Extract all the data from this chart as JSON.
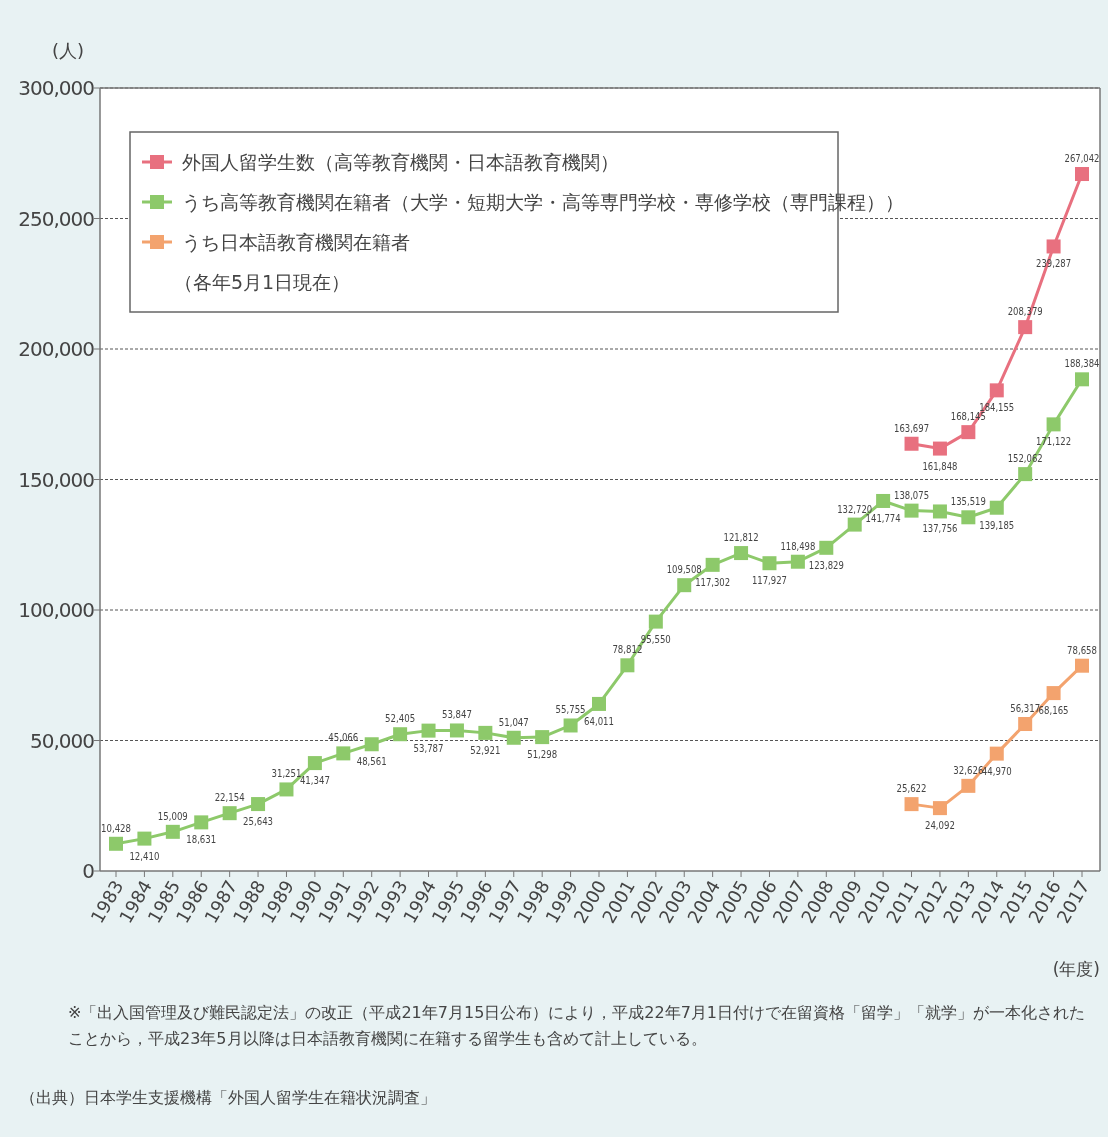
{
  "chart_data": {
    "type": "line",
    "ylabel": "(人)",
    "xlabel": "(年度)",
    "categories": [
      "1983",
      "1984",
      "1985",
      "1986",
      "1987",
      "1988",
      "1989",
      "1990",
      "1991",
      "1992",
      "1993",
      "1994",
      "1995",
      "1996",
      "1997",
      "1998",
      "1999",
      "2000",
      "2001",
      "2002",
      "2003",
      "2004",
      "2005",
      "2006",
      "2007",
      "2008",
      "2009",
      "2010",
      "2011",
      "2012",
      "2013",
      "2014",
      "2015",
      "2016",
      "2017"
    ],
    "series": [
      {
        "name": "外国人留学生数（高等教育機関・日本語教育機関）",
        "color": "#e8707f",
        "values": [
          null,
          null,
          null,
          null,
          null,
          null,
          null,
          null,
          null,
          null,
          null,
          null,
          null,
          null,
          null,
          null,
          null,
          null,
          null,
          null,
          null,
          null,
          null,
          null,
          null,
          null,
          null,
          null,
          163697,
          161848,
          168145,
          184155,
          208379,
          239287,
          267042
        ],
        "value_labels": [
          null,
          null,
          null,
          null,
          null,
          null,
          null,
          null,
          null,
          null,
          null,
          null,
          null,
          null,
          null,
          null,
          null,
          null,
          null,
          null,
          null,
          null,
          null,
          null,
          null,
          null,
          null,
          null,
          "163,697",
          "161,848",
          "168,145",
          "184,155",
          "208,379",
          "239,287",
          "267,042"
        ]
      },
      {
        "name": "うち高等教育機関在籍者（大学・短期大学・高等専門学校・専修学校（専門課程））",
        "color": "#8dc96a",
        "values": [
          10428,
          12410,
          15009,
          18631,
          22154,
          25643,
          31251,
          41347,
          45066,
          48561,
          52405,
          53787,
          53847,
          52921,
          51047,
          51298,
          55755,
          64011,
          78812,
          95550,
          109508,
          117302,
          121812,
          117927,
          118498,
          123829,
          132720,
          141774,
          138075,
          137756,
          135519,
          139185,
          152062,
          171122,
          188384
        ],
        "value_labels": [
          "10,428",
          "12,410",
          "15,009",
          "18,631",
          "22,154",
          "25,643",
          "31,251",
          "41,347",
          "45,066",
          "48,561",
          "52,405",
          "53,787",
          "53,847",
          "52,921",
          "51,047",
          "51,298",
          "55,755",
          "64,011",
          "78,812",
          "95,550",
          "109,508",
          "117,302",
          "121,812",
          "117,927",
          "118,498",
          "123,829",
          "132,720",
          "141,774",
          "138,075",
          "137,756",
          "135,519",
          "139,185",
          "152,062",
          "171,122",
          "188,384"
        ]
      },
      {
        "name": "うち日本語教育機関在籍者",
        "color": "#f3a36e",
        "values": [
          null,
          null,
          null,
          null,
          null,
          null,
          null,
          null,
          null,
          null,
          null,
          null,
          null,
          null,
          null,
          null,
          null,
          null,
          null,
          null,
          null,
          null,
          null,
          null,
          null,
          null,
          null,
          null,
          25622,
          24092,
          32626,
          44970,
          56317,
          68165,
          78658
        ],
        "value_labels": [
          null,
          null,
          null,
          null,
          null,
          null,
          null,
          null,
          null,
          null,
          null,
          null,
          null,
          null,
          null,
          null,
          null,
          null,
          null,
          null,
          null,
          null,
          null,
          null,
          null,
          null,
          null,
          null,
          "25,622",
          "24,092",
          "32,626",
          "44,970",
          "56,317",
          "68,165",
          "78,658"
        ]
      }
    ],
    "ylim": [
      0,
      300000
    ],
    "yticks": [
      0,
      {
        "value": 50000,
        "label": "50,000"
      },
      {
        "value": 100000,
        "label": "100,000"
      },
      {
        "value": 150000,
        "label": "150,000"
      },
      {
        "value": 200000,
        "label": "200,000"
      },
      {
        "value": 250000,
        "label": "250,000"
      },
      {
        "value": 300000,
        "label": "300,000"
      }
    ],
    "grid": "y",
    "legend": "top left",
    "marker": "square",
    "line_style": "solid",
    "annotations": [
      "（各年5月1日現在）",
      "※「出入国管理及び難民認定法」の改正（平成21年7月15日公布）により，平成22年7月1日付けで在留資格「留学」「就学」が一本化されたことから，平成23年5月以降は日本語教育機関に在籍する留学生も含めて計上している。",
      "（出典）日本学生支援機構「外国人留学生在籍状況調査」"
    ]
  }
}
